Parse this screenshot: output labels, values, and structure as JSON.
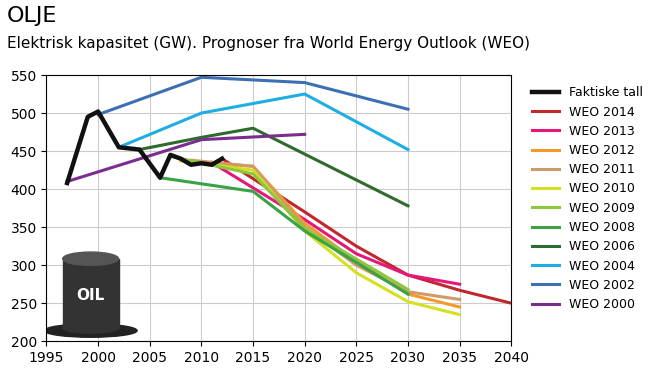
{
  "chart_data": {
    "type": "line",
    "title": "OLJE",
    "subtitle": "Elektrisk kapasitet (GW). Prognoser fra World Energy Outlook (WEO)",
    "annotations": [
      "OIL"
    ],
    "xlim": [
      1995,
      2040
    ],
    "xticks": [
      1995,
      2000,
      2005,
      2010,
      2015,
      2020,
      2025,
      2030,
      2035,
      2040
    ],
    "ylim": [
      200,
      550
    ],
    "yticks": [
      200,
      250,
      300,
      350,
      400,
      450,
      500,
      550
    ],
    "grid": true,
    "legend": "right",
    "series": [
      {
        "name": "Faktiske tall",
        "color": "#111111",
        "x": [
          1997,
          1999,
          2000,
          2002,
          2004,
          2006,
          2007,
          2008,
          2009,
          2010,
          2011,
          2012
        ],
        "values": [
          408,
          495,
          502,
          455,
          452,
          415,
          445,
          440,
          432,
          434,
          432,
          440
        ]
      },
      {
        "name": "WEO 2014",
        "color": "#c0282d",
        "x": [
          2012,
          2020,
          2025,
          2030,
          2035,
          2040
        ],
        "values": [
          440,
          370,
          325,
          287,
          267,
          250
        ]
      },
      {
        "name": "WEO 2013",
        "color": "#e6177a",
        "x": [
          2011,
          2020,
          2025,
          2030,
          2035
        ],
        "values": [
          435,
          360,
          315,
          287,
          275
        ]
      },
      {
        "name": "WEO 2012",
        "color": "#f39a2b",
        "x": [
          2010,
          2015,
          2020,
          2025,
          2030,
          2035
        ],
        "values": [
          435,
          430,
          355,
          305,
          262,
          245
        ]
      },
      {
        "name": "WEO 2011",
        "color": "#cf9a6a",
        "x": [
          2009,
          2015,
          2020,
          2025,
          2030,
          2035
        ],
        "values": [
          438,
          430,
          350,
          300,
          265,
          255
        ]
      },
      {
        "name": "WEO 2010",
        "color": "#d4e021",
        "x": [
          2008,
          2015,
          2020,
          2025,
          2030,
          2035
        ],
        "values": [
          437,
          425,
          345,
          290,
          252,
          235
        ]
      },
      {
        "name": "WEO 2009",
        "color": "#8dc63f",
        "x": [
          2007,
          2015,
          2020,
          2030
        ],
        "values": [
          443,
          420,
          348,
          268
        ]
      },
      {
        "name": "WEO 2008",
        "color": "#3aa346",
        "x": [
          2006,
          2015,
          2020,
          2030
        ],
        "values": [
          415,
          397,
          345,
          262
        ]
      },
      {
        "name": "WEO 2006",
        "color": "#2e6b2e",
        "x": [
          2004,
          2010,
          2015,
          2030
        ],
        "values": [
          452,
          468,
          480,
          378
        ]
      },
      {
        "name": "WEO 2004",
        "color": "#1eaee4",
        "x": [
          2002,
          2010,
          2020,
          2030
        ],
        "values": [
          455,
          500,
          525,
          452
        ]
      },
      {
        "name": "WEO 2002",
        "color": "#3d6fb4",
        "x": [
          2000,
          2010,
          2020,
          2030
        ],
        "values": [
          498,
          547,
          540,
          505
        ]
      },
      {
        "name": "WEO 2000",
        "color": "#7b2d8e",
        "x": [
          1997,
          2010,
          2020
        ],
        "values": [
          410,
          465,
          472
        ]
      }
    ]
  }
}
